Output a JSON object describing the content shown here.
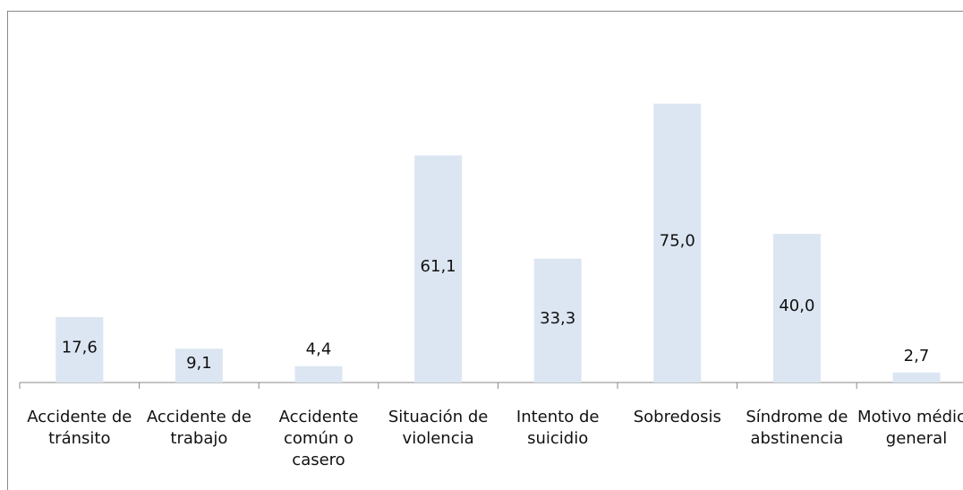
{
  "chart_data": {
    "type": "bar",
    "categories": [
      "Accidente de tránsito",
      "Accidente de trabajo",
      "Accidente común o casero",
      "Situación de violencia",
      "Intento de suicidio",
      "Sobredosis",
      "Síndrome de abstinencia",
      "Motivo médico general"
    ],
    "values": [
      17.6,
      9.1,
      4.4,
      61.1,
      33.3,
      75.0,
      40.0,
      2.7
    ],
    "value_labels": [
      "17,6",
      "9,1",
      "4,4",
      "61,1",
      "33,3",
      "75,0",
      "40,0",
      "2,7"
    ],
    "color": "#dce6f2",
    "ylim": [
      0,
      100
    ]
  }
}
